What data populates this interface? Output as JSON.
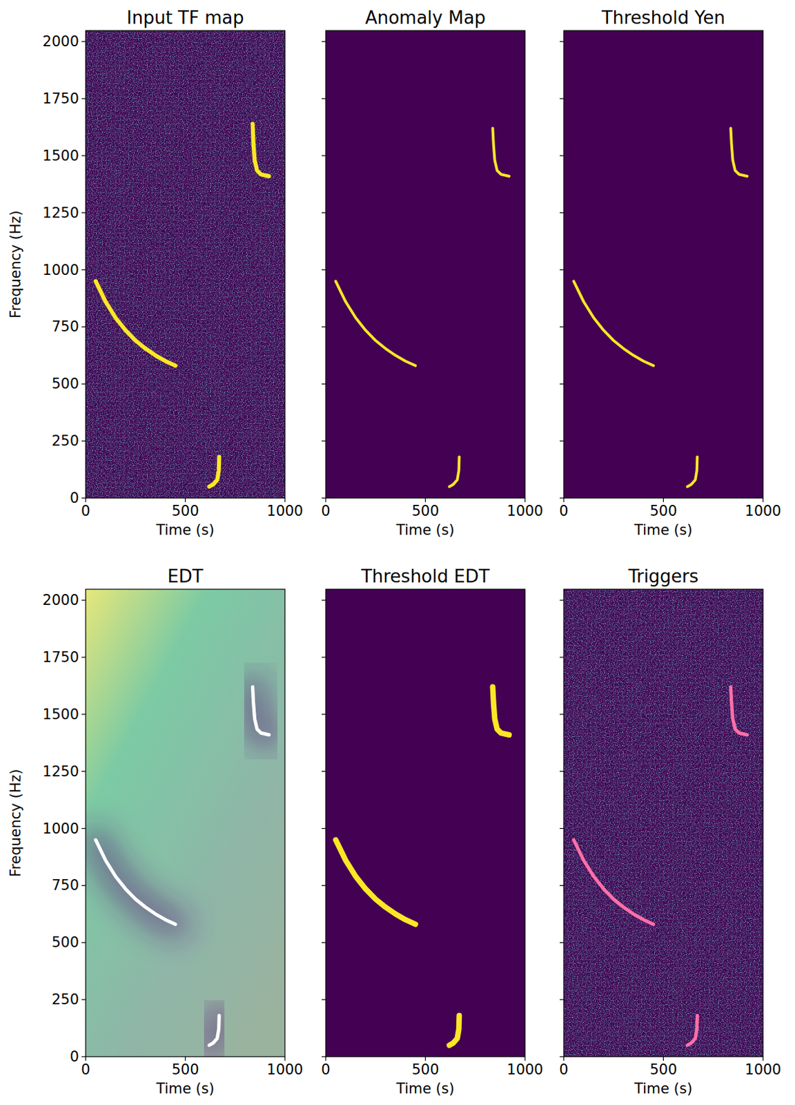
{
  "chart_data": [
    {
      "type": "line",
      "title": "Input TF map",
      "x_label": "Time (s)",
      "y_label": "Frequency (Hz)",
      "xlim": [
        0,
        1000
      ],
      "ylim": [
        0,
        2048
      ],
      "xticks": [
        0,
        500,
        1000
      ],
      "yticks": [
        0,
        250,
        500,
        750,
        1000,
        1250,
        1500,
        1750,
        2000
      ],
      "tick_labels": true,
      "series": [
        {
          "color": "#fde725",
          "x": [
            50,
            100,
            150,
            200,
            250,
            300,
            350,
            400,
            450
          ],
          "values": [
            950,
            860,
            790,
            735,
            690,
            655,
            625,
            600,
            580
          ]
        },
        {
          "color": "#fde725",
          "x": [
            838,
            842,
            848,
            860,
            880,
            920
          ],
          "values": [
            1640,
            1550,
            1480,
            1435,
            1418,
            1410
          ]
        },
        {
          "color": "#fde725",
          "x": [
            620,
            640,
            660,
            668,
            670
          ],
          "values": [
            50,
            60,
            80,
            120,
            180
          ]
        }
      ]
    },
    {
      "type": "line",
      "title": "Anomaly Map",
      "x_label": "Time (s)",
      "xlim": [
        0,
        1000
      ],
      "ylim": [
        0,
        2048
      ],
      "xticks": [
        0,
        500,
        1000
      ],
      "yticks": [
        0,
        250,
        500,
        750,
        1000,
        1250,
        1500,
        1750,
        2000
      ],
      "tick_labels": "x",
      "series": [
        {
          "color": "#fde725",
          "x": [
            50,
            100,
            150,
            200,
            250,
            300,
            350,
            400,
            450
          ],
          "values": [
            950,
            860,
            790,
            735,
            690,
            655,
            625,
            600,
            580
          ]
        },
        {
          "color": "#fde725",
          "x": [
            838,
            842,
            848,
            860,
            880,
            920
          ],
          "values": [
            1620,
            1550,
            1480,
            1435,
            1418,
            1410
          ]
        },
        {
          "color": "#fde725",
          "x": [
            620,
            640,
            660,
            668,
            670
          ],
          "values": [
            50,
            60,
            80,
            120,
            180
          ]
        }
      ]
    },
    {
      "type": "line",
      "title": "Threshold Yen",
      "x_label": "Time (s)",
      "xlim": [
        0,
        1000
      ],
      "ylim": [
        0,
        2048
      ],
      "xticks": [
        0,
        500,
        1000
      ],
      "yticks": [
        0,
        250,
        500,
        750,
        1000,
        1250,
        1500,
        1750,
        2000
      ],
      "tick_labels": "x",
      "series": [
        {
          "color": "#fde725",
          "x": [
            50,
            100,
            150,
            200,
            250,
            300,
            350,
            400,
            450
          ],
          "values": [
            950,
            860,
            790,
            735,
            690,
            655,
            625,
            600,
            580
          ]
        },
        {
          "color": "#fde725",
          "x": [
            838,
            842,
            848,
            860,
            880,
            920
          ],
          "values": [
            1620,
            1550,
            1480,
            1435,
            1418,
            1410
          ]
        },
        {
          "color": "#fde725",
          "x": [
            620,
            640,
            660,
            668,
            670
          ],
          "values": [
            50,
            60,
            80,
            120,
            180
          ]
        }
      ]
    },
    {
      "type": "line",
      "title": "EDT",
      "x_label": "Time (s)",
      "y_label": "Frequency (Hz)",
      "xlim": [
        0,
        1000
      ],
      "ylim": [
        0,
        2048
      ],
      "xticks": [
        0,
        500,
        1000
      ],
      "yticks": [
        0,
        250,
        500,
        750,
        1000,
        1250,
        1500,
        1750,
        2000
      ],
      "tick_labels": true,
      "series": [
        {
          "color": "#ffffff",
          "x": [
            50,
            100,
            150,
            200,
            250,
            300,
            350,
            400,
            450
          ],
          "values": [
            950,
            860,
            790,
            735,
            690,
            655,
            625,
            600,
            580
          ]
        },
        {
          "color": "#ffffff",
          "x": [
            838,
            842,
            848,
            860,
            880,
            920
          ],
          "values": [
            1620,
            1550,
            1480,
            1435,
            1418,
            1410
          ]
        },
        {
          "color": "#ffffff",
          "x": [
            620,
            640,
            660,
            668,
            670
          ],
          "values": [
            50,
            60,
            80,
            120,
            180
          ]
        }
      ]
    },
    {
      "type": "line",
      "title": "Threshold EDT",
      "x_label": "Time (s)",
      "xlim": [
        0,
        1000
      ],
      "ylim": [
        0,
        2048
      ],
      "xticks": [
        0,
        500,
        1000
      ],
      "yticks": [
        0,
        250,
        500,
        750,
        1000,
        1250,
        1500,
        1750,
        2000
      ],
      "tick_labels": "x",
      "series": [
        {
          "color": "#fde725",
          "x": [
            50,
            100,
            150,
            200,
            250,
            300,
            350,
            400,
            450
          ],
          "values": [
            950,
            860,
            790,
            735,
            690,
            655,
            625,
            600,
            580
          ]
        },
        {
          "color": "#fde725",
          "x": [
            838,
            842,
            848,
            860,
            880,
            920
          ],
          "values": [
            1620,
            1550,
            1480,
            1435,
            1418,
            1410
          ]
        },
        {
          "color": "#fde725",
          "x": [
            620,
            640,
            660,
            668,
            670
          ],
          "values": [
            50,
            60,
            80,
            120,
            180
          ]
        }
      ]
    },
    {
      "type": "line",
      "title": "Triggers",
      "x_label": "Time (s)",
      "xlim": [
        0,
        1000
      ],
      "ylim": [
        0,
        2048
      ],
      "xticks": [
        0,
        500,
        1000
      ],
      "yticks": [
        0,
        250,
        500,
        750,
        1000,
        1250,
        1500,
        1750,
        2000
      ],
      "tick_labels": "x",
      "series": [
        {
          "color": "#ff6fa8",
          "x": [
            50,
            100,
            150,
            200,
            250,
            300,
            350,
            400,
            450
          ],
          "values": [
            950,
            860,
            790,
            735,
            690,
            655,
            625,
            600,
            580
          ]
        },
        {
          "color": "#ff6fa8",
          "x": [
            838,
            842,
            848,
            860,
            880,
            920
          ],
          "values": [
            1620,
            1550,
            1480,
            1435,
            1418,
            1410
          ]
        },
        {
          "color": "#ff6fa8",
          "x": [
            620,
            640,
            660,
            668,
            670
          ],
          "values": [
            50,
            60,
            80,
            120,
            180
          ]
        }
      ]
    }
  ]
}
